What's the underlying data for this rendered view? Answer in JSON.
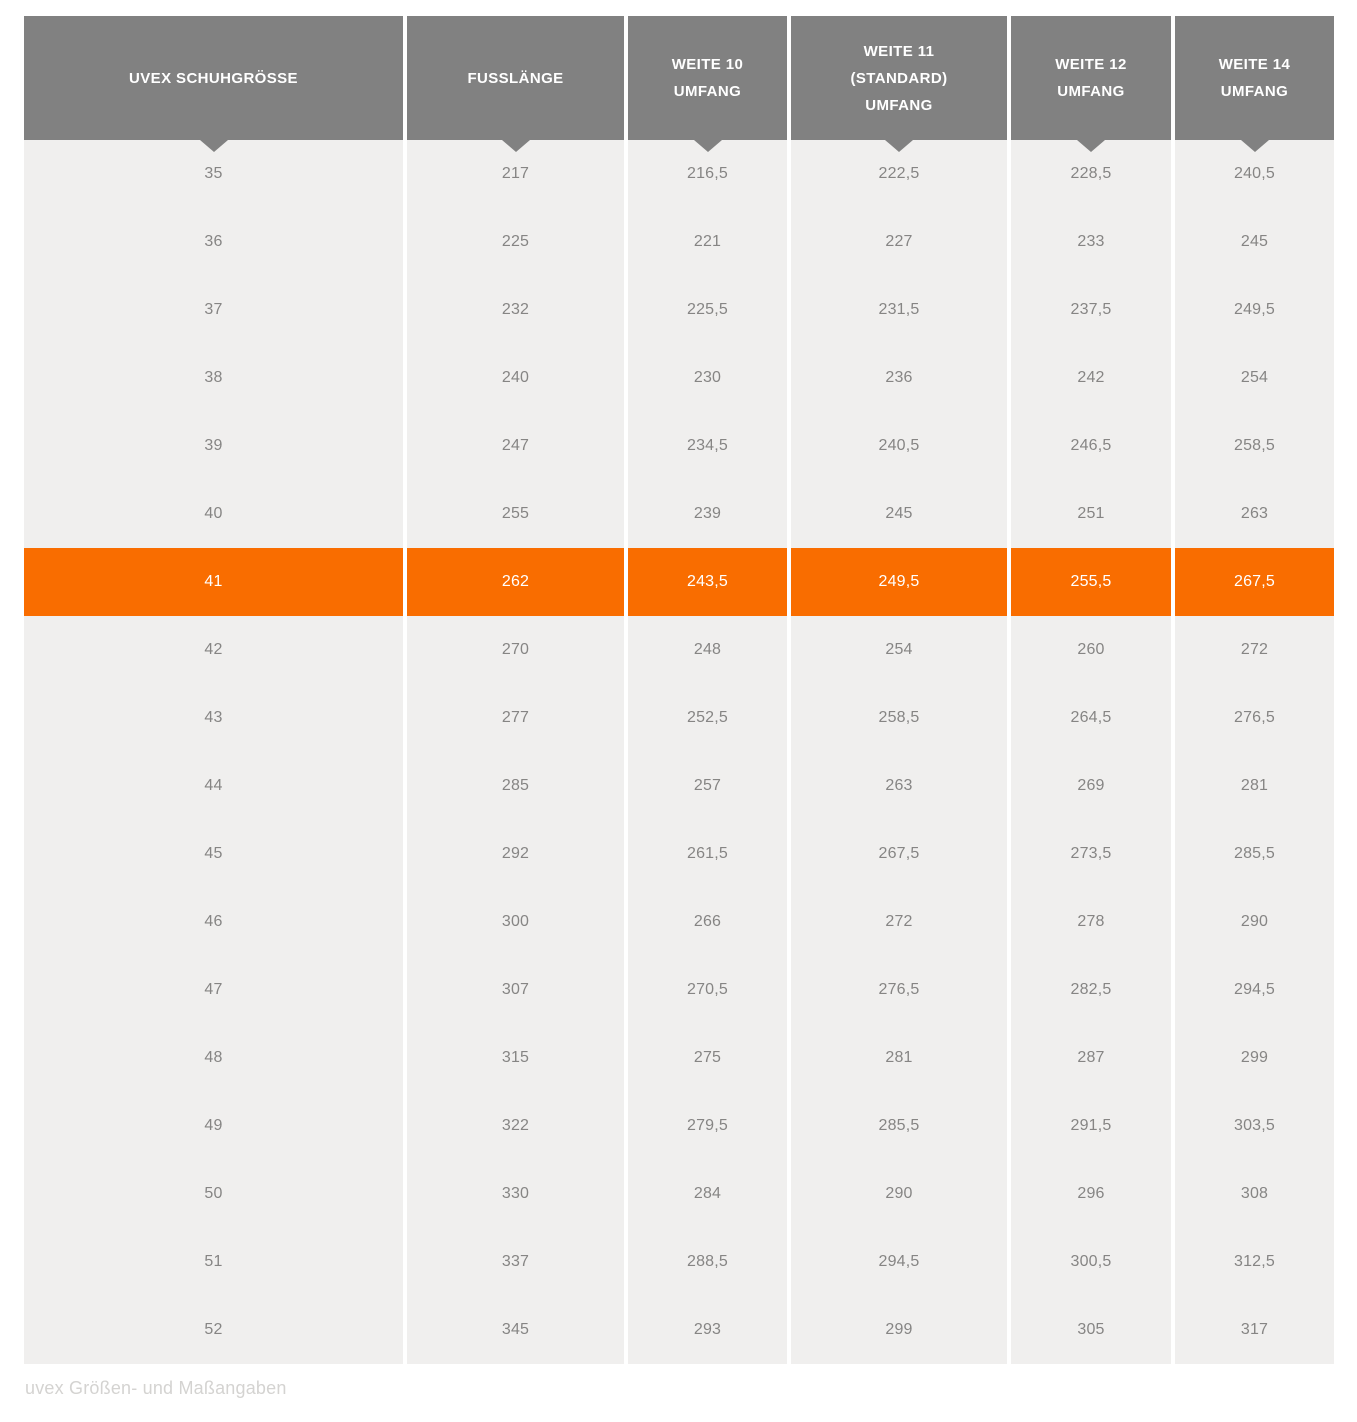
{
  "colors": {
    "header_bg": "#818181",
    "row_bg": "#f0efee",
    "highlight_bg": "#f96d00",
    "header_text": "#ffffff",
    "cell_text": "#868584",
    "caption_text": "#d4d3d1"
  },
  "chart_data": {
    "type": "table",
    "columns": [
      "UVEX SCHUHGRÖSSE",
      "FUSSLÄNGE",
      "WEITE 10\nUMFANG",
      "WEITE 11\n(STANDARD)\nUMFANG",
      "WEITE 12\nUMFANG",
      "WEITE 14\nUMFANG"
    ],
    "rows": [
      [
        "35",
        "217",
        "216,5",
        "222,5",
        "228,5",
        "240,5"
      ],
      [
        "36",
        "225",
        "221",
        "227",
        "233",
        "245"
      ],
      [
        "37",
        "232",
        "225,5",
        "231,5",
        "237,5",
        "249,5"
      ],
      [
        "38",
        "240",
        "230",
        "236",
        "242",
        "254"
      ],
      [
        "39",
        "247",
        "234,5",
        "240,5",
        "246,5",
        "258,5"
      ],
      [
        "40",
        "255",
        "239",
        "245",
        "251",
        "263"
      ],
      [
        "41",
        "262",
        "243,5",
        "249,5",
        "255,5",
        "267,5"
      ],
      [
        "42",
        "270",
        "248",
        "254",
        "260",
        "272"
      ],
      [
        "43",
        "277",
        "252,5",
        "258,5",
        "264,5",
        "276,5"
      ],
      [
        "44",
        "285",
        "257",
        "263",
        "269",
        "281"
      ],
      [
        "45",
        "292",
        "261,5",
        "267,5",
        "273,5",
        "285,5"
      ],
      [
        "46",
        "300",
        "266",
        "272",
        "278",
        "290"
      ],
      [
        "47",
        "307",
        "270,5",
        "276,5",
        "282,5",
        "294,5"
      ],
      [
        "48",
        "315",
        "275",
        "281",
        "287",
        "299"
      ],
      [
        "49",
        "322",
        "279,5",
        "285,5",
        "291,5",
        "303,5"
      ],
      [
        "50",
        "330",
        "284",
        "290",
        "296",
        "308"
      ],
      [
        "51",
        "337",
        "288,5",
        "294,5",
        "300,5",
        "312,5"
      ],
      [
        "52",
        "345",
        "293",
        "299",
        "305",
        "317"
      ]
    ],
    "highlighted_row_index": 6,
    "highlighted_row_value": "41",
    "caption": "uvex Größen- und Maßangaben",
    "layout": {
      "grid": "off",
      "header_position": "top",
      "highlight_style": "full-row-orange"
    }
  }
}
